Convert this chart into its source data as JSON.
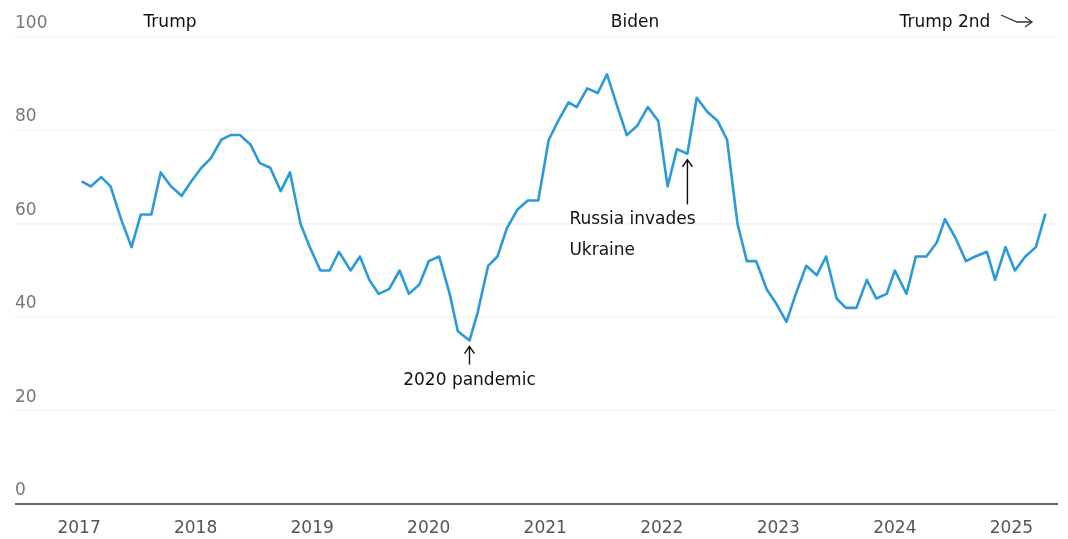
{
  "chart_data": {
    "type": "line",
    "x": [
      2017.03,
      2017.1,
      2017.19,
      2017.27,
      2017.36,
      2017.45,
      2017.53,
      2017.62,
      2017.7,
      2017.79,
      2017.88,
      2017.96,
      2018.05,
      2018.13,
      2018.22,
      2018.3,
      2018.38,
      2018.47,
      2018.55,
      2018.64,
      2018.73,
      2018.81,
      2018.9,
      2018.98,
      2019.07,
      2019.15,
      2019.23,
      2019.33,
      2019.41,
      2019.49,
      2019.57,
      2019.66,
      2019.75,
      2019.83,
      2019.92,
      2020.0,
      2020.09,
      2020.18,
      2020.25,
      2020.35,
      2020.42,
      2020.51,
      2020.59,
      2020.67,
      2020.76,
      2020.85,
      2020.94,
      2021.03,
      2021.11,
      2021.2,
      2021.27,
      2021.36,
      2021.45,
      2021.53,
      2021.62,
      2021.7,
      2021.79,
      2021.88,
      2021.97,
      2022.05,
      2022.13,
      2022.22,
      2022.3,
      2022.39,
      2022.48,
      2022.56,
      2022.65,
      2022.73,
      2022.81,
      2022.9,
      2022.98,
      2023.07,
      2023.15,
      2023.24,
      2023.33,
      2023.41,
      2023.5,
      2023.58,
      2023.67,
      2023.76,
      2023.84,
      2023.93,
      2024.0,
      2024.1,
      2024.18,
      2024.27,
      2024.36,
      2024.43,
      2024.52,
      2024.61,
      2024.69,
      2024.79,
      2024.86,
      2024.95,
      2025.03,
      2025.12,
      2025.21,
      2025.29
    ],
    "series": [
      {
        "color": "#2a9ad8",
        "values": [
          69,
          68,
          70,
          68,
          61,
          55,
          62,
          62,
          71,
          68,
          66,
          69,
          72,
          74,
          78,
          79,
          79,
          77,
          73,
          72,
          67,
          71,
          60,
          55,
          50,
          50,
          54,
          50,
          53,
          48,
          45,
          46,
          50,
          45,
          47,
          52,
          53,
          45,
          37,
          35,
          41,
          51,
          53,
          59,
          63,
          65,
          65,
          78,
          82,
          86,
          85,
          89,
          88,
          92,
          85,
          79,
          81,
          85,
          82,
          68,
          76,
          75,
          87,
          84,
          82,
          78,
          60,
          52,
          52,
          46,
          43,
          39,
          45,
          51,
          49,
          53,
          44,
          42,
          42,
          48,
          44,
          45,
          50,
          45,
          53,
          53,
          56,
          61,
          57,
          52,
          53,
          54,
          48,
          55,
          50,
          53,
          55,
          62
        ]
      }
    ],
    "xlim": [
      2016.45,
      2025.4
    ],
    "xticks": [
      2017,
      2018,
      2019,
      2020,
      2021,
      2022,
      2023,
      2024,
      2025
    ],
    "ylim": [
      0,
      100
    ],
    "yticks": [
      0,
      20,
      40,
      60,
      80,
      100
    ],
    "grid": "y",
    "annotations": [
      "Trump",
      "Biden",
      "Trump 2nd",
      {
        "text": "2020 pandemic",
        "x": 2020.35,
        "y": 35
      },
      {
        "text": "Russia invades Ukraine",
        "x": 2022.22,
        "y": 75
      }
    ]
  }
}
